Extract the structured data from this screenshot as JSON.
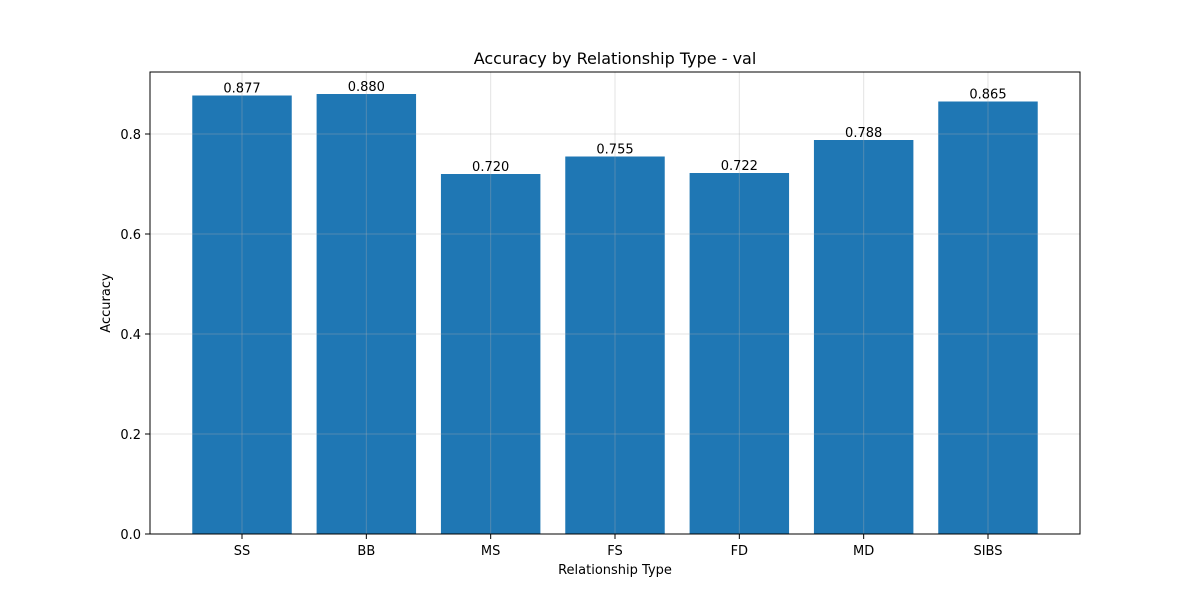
{
  "chart_data": {
    "type": "bar",
    "title": "Accuracy by Relationship Type - val",
    "xlabel": "Relationship Type",
    "ylabel": "Accuracy",
    "categories": [
      "SS",
      "BB",
      "MS",
      "FS",
      "FD",
      "MD",
      "SIBS"
    ],
    "values": [
      0.877,
      0.88,
      0.72,
      0.755,
      0.722,
      0.788,
      0.865
    ],
    "value_labels": [
      "0.877",
      "0.880",
      "0.720",
      "0.755",
      "0.722",
      "0.788",
      "0.865"
    ],
    "ylim": [
      0,
      0.924
    ],
    "yticks": [
      0.0,
      0.2,
      0.4,
      0.6,
      0.8
    ],
    "ytick_labels": [
      "0.0",
      "0.2",
      "0.4",
      "0.6",
      "0.8"
    ],
    "grid": true,
    "bar_color": "#1f77b4"
  }
}
